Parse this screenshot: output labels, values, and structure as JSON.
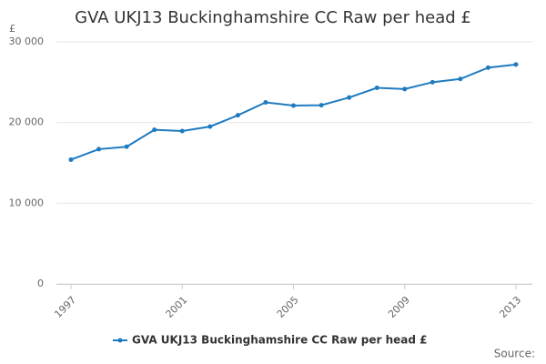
{
  "chart_data": {
    "type": "line",
    "title": "GVA UKJ13 Buckinghamshire CC Raw per head £",
    "y_label": "£",
    "source": "Source:",
    "x": [
      1997,
      1998,
      1999,
      2000,
      2001,
      2002,
      2003,
      2004,
      2005,
      2006,
      2007,
      2008,
      2009,
      2010,
      2011,
      2012,
      2013
    ],
    "series": [
      {
        "name": "GVA UKJ13 Buckinghamshire CC Raw per head £",
        "color": "#1f7bbf",
        "values": [
          15400,
          16700,
          17000,
          19100,
          18950,
          19500,
          20900,
          22500,
          22100,
          22150,
          23100,
          24300,
          24150,
          25000,
          25400,
          26800,
          27200
        ]
      }
    ],
    "xlim": [
      1997,
      2013
    ],
    "xticks": [
      1997,
      2001,
      2005,
      2009,
      2013
    ],
    "ylim": [
      0,
      30000
    ],
    "yticks": [
      {
        "value": 0,
        "label": "0"
      },
      {
        "value": 10000,
        "label": "10 000"
      },
      {
        "value": 20000,
        "label": "20 000"
      },
      {
        "value": 30000,
        "label": "30 000"
      }
    ],
    "grid": true
  }
}
